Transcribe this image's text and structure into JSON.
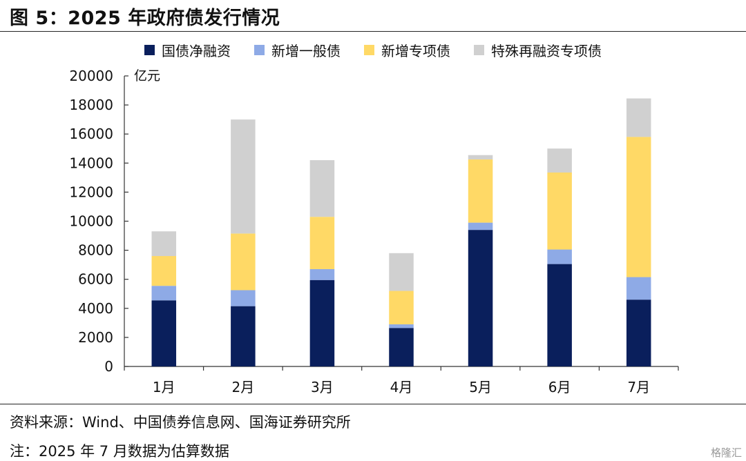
{
  "figure": {
    "title": "图 5：2025 年政府债发行情况",
    "source": "资料来源：Wind、中国债券信息网、国海证券研究所",
    "note": "注：2025 年 7 月数据为估算数据",
    "watermark": "格隆汇"
  },
  "chart_data": {
    "type": "bar",
    "stacked": true,
    "title": "",
    "unit": "亿元",
    "categories": [
      "1月",
      "2月",
      "3月",
      "4月",
      "5月",
      "6月",
      "7月"
    ],
    "series": [
      {
        "name": "国债净融资",
        "color": "#0a1f5c",
        "values": [
          4550,
          4150,
          5950,
          2650,
          9400,
          7050,
          4600
        ]
      },
      {
        "name": "新增一般债",
        "color": "#8eaae6",
        "values": [
          1000,
          1100,
          750,
          250,
          500,
          1000,
          1550
        ]
      },
      {
        "name": "新增专项债",
        "color": "#ffd966",
        "values": [
          2050,
          3900,
          3600,
          2300,
          4350,
          5300,
          9650
        ]
      },
      {
        "name": "特殊再融资专项债",
        "color": "#d0d0d0",
        "values": [
          1700,
          7850,
          3900,
          2600,
          300,
          1650,
          2650
        ]
      }
    ],
    "ylim": [
      0,
      20000
    ],
    "yticks": [
      0,
      2000,
      4000,
      6000,
      8000,
      10000,
      12000,
      14000,
      16000,
      18000,
      20000
    ],
    "grid": false,
    "legend": "top-center"
  }
}
